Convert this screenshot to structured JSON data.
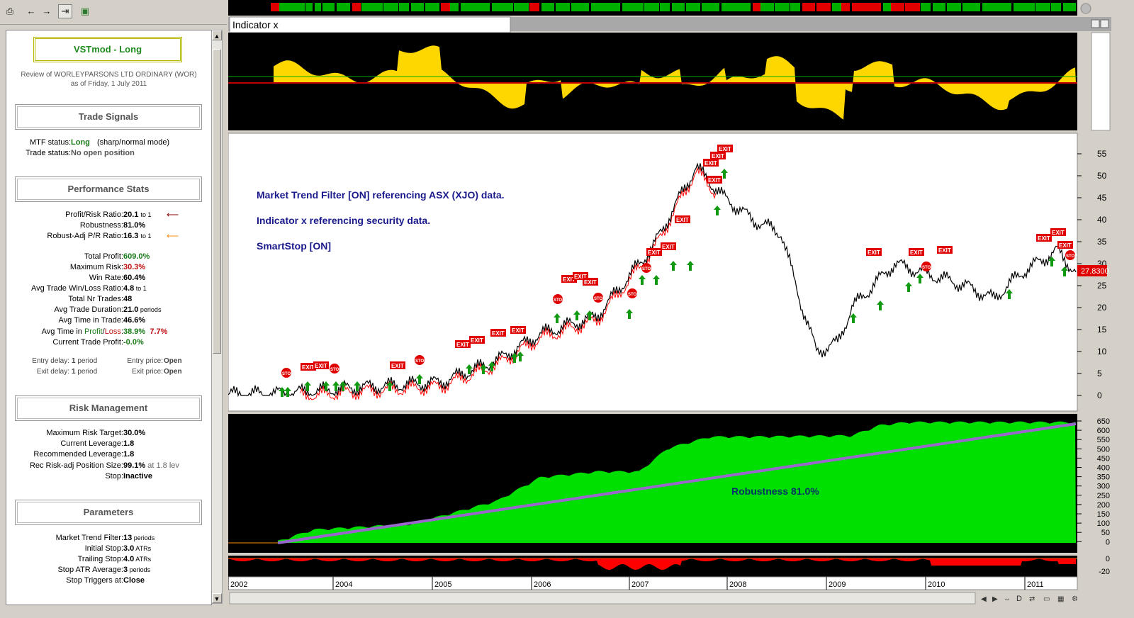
{
  "toolbar": {
    "print_icon": "print-icon",
    "back_icon": "back-arrow-icon",
    "forward_icon": "forward-arrow-icon",
    "pin_icon": "pin-icon",
    "export_icon": "export-icon"
  },
  "sidebar": {
    "title": "VSTmod - Long",
    "review_line1": "Review of WORLEYPARSONS LTD  ORDINARY (WOR)",
    "review_line2": "as of Friday, 1 July 2011",
    "trade_signals": {
      "heading": "Trade Signals",
      "mtf_label": "MTF status:",
      "mtf_value": "Long",
      "mtf_note": "(sharp/normal mode)",
      "trade_label": "Trade status:",
      "trade_value": "No open position"
    },
    "performance": {
      "heading": "Performance Stats",
      "rows": [
        {
          "label": "Profit/Risk Ratio:",
          "value": "20.1",
          "unit": "to 1"
        },
        {
          "label": "Robustness:",
          "value": "81.0%",
          "unit": ""
        },
        {
          "label": "Robust-Adj P/R Ratio:",
          "value": "16.3",
          "unit": "to 1"
        }
      ],
      "stats": [
        {
          "label": "Total Profit:",
          "value": "609.0%",
          "cls": "green"
        },
        {
          "label": "Maximum Risk:",
          "value": "30.3%",
          "cls": "red"
        },
        {
          "label": "Win Rate:",
          "value": "60.4%",
          "cls": ""
        },
        {
          "label": "Avg Trade Win/Loss Ratio:",
          "value": "4.8",
          "unit": "to 1",
          "cls": ""
        },
        {
          "label": "Total Nr Trades:",
          "value": "48",
          "cls": ""
        },
        {
          "label": "Avg Trade Duration:",
          "value": "21.0",
          "unit": "periods",
          "cls": ""
        },
        {
          "label": "Avg Time in Trade:",
          "value": "46.6%",
          "cls": ""
        }
      ],
      "time_label_pre": "Avg Time in ",
      "time_label_profit": "Profit",
      "time_label_sep": "/",
      "time_label_loss": "Loss",
      "time_label_post": ":",
      "time_profit_value": "38.9%",
      "time_loss_value": "7.7%",
      "current_label": "Current Trade Profit:",
      "current_value": "-0.0%",
      "entry_delay_label": "Entry delay:",
      "entry_delay_value": "1",
      "entry_delay_unit": "period",
      "exit_delay_label": "Exit delay:",
      "exit_delay_value": "1",
      "exit_delay_unit": "period",
      "entry_price_label": "Entry price:",
      "entry_price_value": "Open",
      "exit_price_label": "Exit price:",
      "exit_price_value": "Open"
    },
    "risk": {
      "heading": "Risk Management",
      "rows": [
        {
          "label": "Maximum Risk Target:",
          "value": "30.0%"
        },
        {
          "label": "Current Leverage:",
          "value": "1.8"
        },
        {
          "label": "Recommended Leverage:",
          "value": "1.8"
        }
      ],
      "pos_label": "Rec Risk-adj Position Size:",
      "pos_value": "99.1%",
      "pos_note": "at 1.8 lev",
      "stop_label": "Stop:",
      "stop_value": "Inactive"
    },
    "parameters": {
      "heading": "Parameters",
      "rows": [
        {
          "label": "Market Trend Filter:",
          "value": "13",
          "unit": "periods"
        },
        {
          "label": "Initial Stop:",
          "value": "3.0",
          "unit": "ATRs"
        },
        {
          "label": "Trailing Stop:",
          "value": "4.0",
          "unit": "ATRs"
        },
        {
          "label": "Stop ATR Average:",
          "value": "3",
          "unit": "periods"
        },
        {
          "label": "Stop Triggers at:",
          "value": "Close",
          "unit": ""
        }
      ]
    }
  },
  "chart": {
    "indicator_tab": "Indicator x",
    "annotations": [
      "Market Trend Filter [ON] referencing ASX (XJO) data.",
      "Indicator x referencing security data.",
      "SmartStop [ON]"
    ],
    "price_label": "27.8300",
    "price_ticks": [
      "55",
      "50",
      "45",
      "40",
      "35",
      "30",
      "25",
      "20",
      "15",
      "10",
      "5",
      "0"
    ],
    "equity_ticks": [
      "650",
      "600",
      "550",
      "500",
      "450",
      "400",
      "350",
      "300",
      "250",
      "200",
      "150",
      "100",
      "50",
      "0"
    ],
    "dd_ticks": [
      "0",
      "-20"
    ],
    "robustness_label": "Robustness 81.0%",
    "years": [
      "2002",
      "2004",
      "2005",
      "2006",
      "2007",
      "2008",
      "2009",
      "2010",
      "2011"
    ],
    "marker_exit": "EXIT",
    "marker_stop": "STOP",
    "bottom_bar_d": "D"
  },
  "colors": {
    "equity_fill": "#00e000",
    "indicator_fill": "#ffd700",
    "trend_line": "#9966cc",
    "signal_red": "#e00000",
    "signal_green": "#119911"
  }
}
